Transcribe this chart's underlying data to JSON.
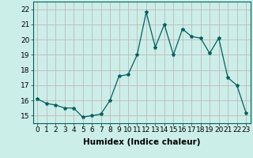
{
  "x": [
    0,
    1,
    2,
    3,
    4,
    5,
    6,
    7,
    8,
    9,
    10,
    11,
    12,
    13,
    14,
    15,
    16,
    17,
    18,
    19,
    20,
    21,
    22,
    23
  ],
  "y": [
    16.1,
    15.8,
    15.7,
    15.5,
    15.5,
    14.9,
    15.0,
    15.1,
    16.0,
    17.6,
    17.7,
    19.0,
    21.8,
    19.5,
    21.0,
    19.0,
    20.7,
    20.2,
    20.1,
    19.1,
    20.1,
    17.5,
    17.0,
    15.2
  ],
  "line_color": "#006060",
  "marker": "*",
  "marker_size": 3,
  "bg_color": "#cceee8",
  "grid_color": "#c0b8b8",
  "xlabel": "Humidex (Indice chaleur)",
  "xlabel_fontsize": 7.5,
  "xtick_labels": [
    "0",
    "1",
    "2",
    "3",
    "4",
    "5",
    "6",
    "7",
    "8",
    "9",
    "10",
    "11",
    "12",
    "13",
    "14",
    "15",
    "16",
    "17",
    "18",
    "19",
    "20",
    "21",
    "22",
    "23"
  ],
  "xlim": [
    -0.5,
    23.5
  ],
  "ylim": [
    14.5,
    22.5
  ],
  "yticks": [
    15,
    16,
    17,
    18,
    19,
    20,
    21,
    22
  ],
  "tick_fontsize": 6.5
}
